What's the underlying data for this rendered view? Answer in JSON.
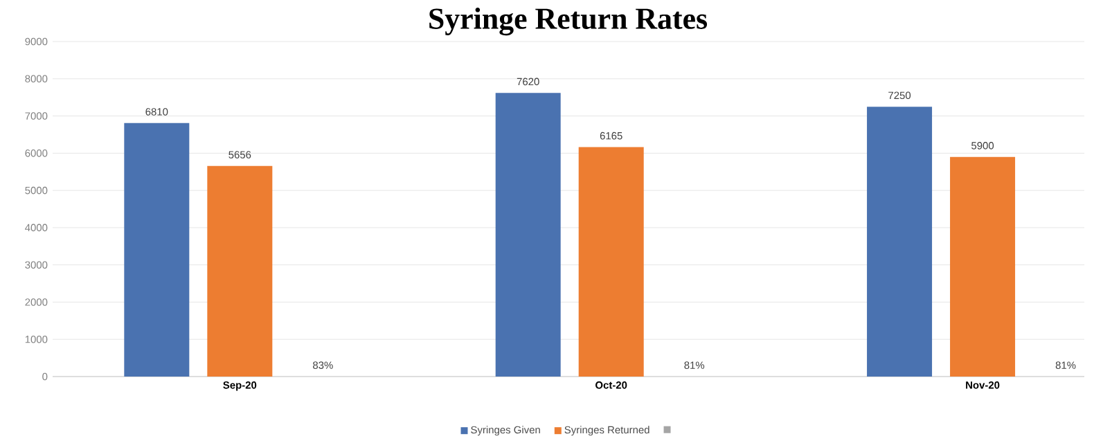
{
  "chart_data": {
    "type": "bar",
    "title": "Syringe Return Rates",
    "categories": [
      "Sep-20",
      "Oct-20",
      "Nov-20"
    ],
    "series": [
      {
        "name": "Syringes Given",
        "color": "#4a72b0",
        "values": [
          6810,
          7620,
          7250
        ],
        "value_labels": [
          "6810",
          "7620",
          "7250"
        ]
      },
      {
        "name": "Syringes Returned",
        "color": "#ed7d31",
        "values": [
          5656,
          6165,
          5900
        ],
        "value_labels": [
          "5656",
          "6165",
          "5900"
        ]
      },
      {
        "color": "#a5a5a5",
        "values": [
          0.83,
          0.81,
          0.81
        ],
        "value_labels": [
          "83%",
          "81%",
          "81%"
        ]
      }
    ],
    "ylim": [
      0,
      9000
    ],
    "yticks": [
      0,
      1000,
      2000,
      3000,
      4000,
      5000,
      6000,
      7000,
      8000,
      9000
    ],
    "grid": "y",
    "legend": "bottom"
  }
}
